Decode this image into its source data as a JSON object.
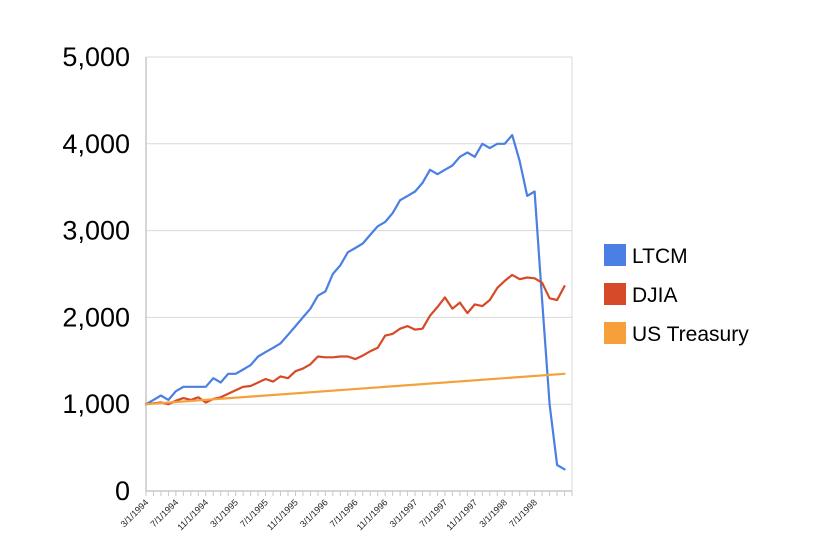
{
  "chart_data": {
    "type": "line",
    "title": "",
    "xlabel": "",
    "ylabel": "",
    "ylim": [
      0,
      5000
    ],
    "y_ticks": [
      "0",
      "1,000",
      "2,000",
      "3,000",
      "4,000",
      "5,000"
    ],
    "y_tick_values": [
      0,
      1000,
      2000,
      3000,
      4000,
      5000
    ],
    "x_tick_labels": [
      "3/1/1994",
      "7/1/1994",
      "11/1/1994",
      "3/1/1995",
      "7/1/1995",
      "11/1/1995",
      "3/1/1996",
      "7/1/1996",
      "11/1/1996",
      "3/1/1997",
      "7/1/1997",
      "11/1/1997",
      "3/1/1998",
      "7/1/1998"
    ],
    "x_tick_month_index": [
      0,
      4,
      8,
      12,
      16,
      20,
      24,
      28,
      32,
      36,
      40,
      44,
      48,
      52
    ],
    "x_range_months": [
      0,
      57
    ],
    "grid": true,
    "legend_position": "right",
    "colors": {
      "LTCM": "#4a7fe3",
      "DJIA": "#d64a28",
      "US Treasury": "#f5a03a",
      "grid": "#d9d9d9",
      "axis": "#c8c8c8"
    },
    "series": [
      {
        "name": "LTCM",
        "x": [
          0,
          1,
          2,
          3,
          4,
          5,
          6,
          7,
          8,
          9,
          10,
          11,
          12,
          13,
          14,
          15,
          16,
          17,
          18,
          19,
          20,
          21,
          22,
          23,
          24,
          25,
          26,
          27,
          28,
          29,
          30,
          31,
          32,
          33,
          34,
          35,
          36,
          37,
          38,
          39,
          40,
          41,
          42,
          43,
          44,
          45,
          46,
          47,
          48,
          49,
          50,
          51,
          52,
          53,
          54,
          55,
          56
        ],
        "values": [
          1000,
          1050,
          1100,
          1050,
          1150,
          1200,
          1200,
          1200,
          1200,
          1300,
          1250,
          1350,
          1350,
          1400,
          1450,
          1550,
          1600,
          1650,
          1700,
          1800,
          1900,
          2000,
          2100,
          2250,
          2300,
          2500,
          2600,
          2750,
          2800,
          2850,
          2950,
          3050,
          3100,
          3200,
          3350,
          3400,
          3450,
          3550,
          3700,
          3650,
          3700,
          3750,
          3850,
          3900,
          3850,
          4000,
          3950,
          4000,
          4000,
          4100,
          3800,
          3400,
          3450,
          2200,
          1000,
          300,
          250
        ]
      },
      {
        "name": "DJIA",
        "x": [
          0,
          1,
          2,
          3,
          4,
          5,
          6,
          7,
          8,
          9,
          10,
          11,
          12,
          13,
          14,
          15,
          16,
          17,
          18,
          19,
          20,
          21,
          22,
          23,
          24,
          25,
          26,
          27,
          28,
          29,
          30,
          31,
          32,
          33,
          34,
          35,
          36,
          37,
          38,
          39,
          40,
          41,
          42,
          43,
          44,
          45,
          46,
          47,
          48,
          49,
          50,
          51,
          52,
          53,
          54,
          55,
          56
        ],
        "values": [
          1000,
          1010,
          1020,
          1000,
          1040,
          1070,
          1050,
          1080,
          1020,
          1060,
          1080,
          1120,
          1160,
          1200,
          1210,
          1250,
          1290,
          1260,
          1320,
          1300,
          1380,
          1410,
          1460,
          1550,
          1540,
          1540,
          1550,
          1550,
          1520,
          1560,
          1610,
          1650,
          1790,
          1810,
          1870,
          1900,
          1860,
          1870,
          2020,
          2120,
          2230,
          2100,
          2170,
          2050,
          2150,
          2130,
          2200,
          2340,
          2420,
          2490,
          2440,
          2460,
          2450,
          2400,
          2220,
          2200,
          2360
        ]
      },
      {
        "name": "US Treasury",
        "x": [
          0,
          56
        ],
        "values": [
          1000,
          1350
        ]
      }
    ]
  }
}
